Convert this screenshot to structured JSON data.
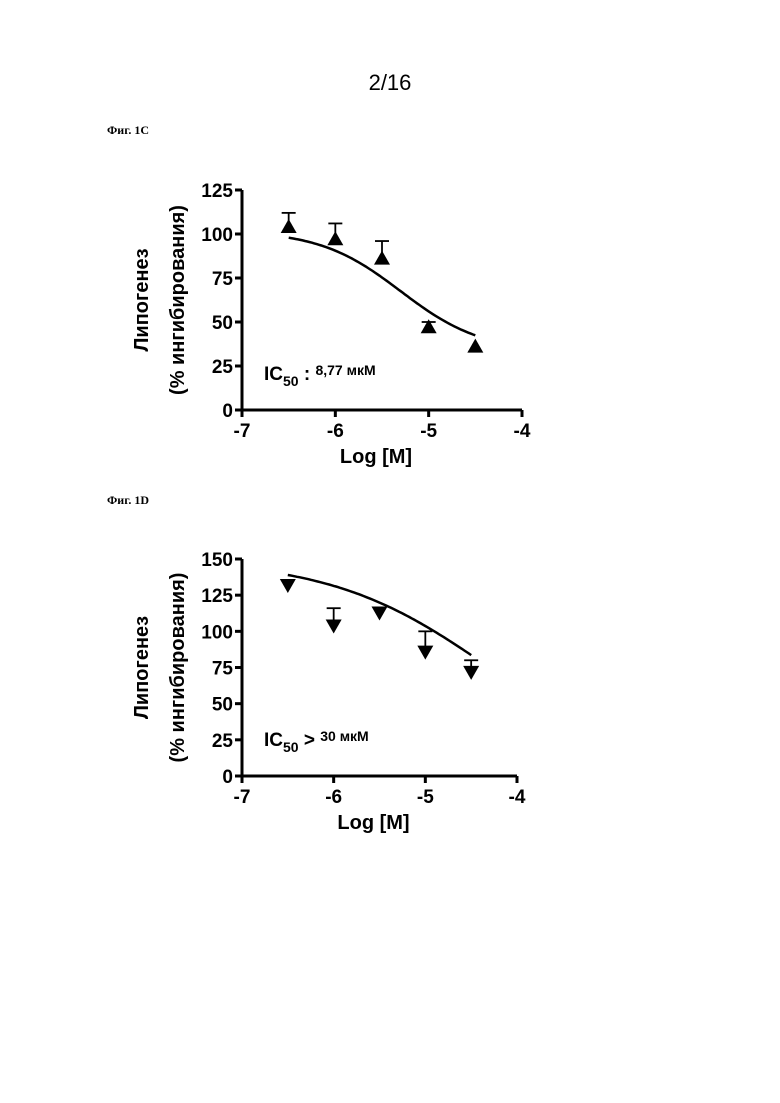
{
  "page": {
    "page_number": "2/16"
  },
  "figures": [
    {
      "label": "Фиг. 1C"
    },
    {
      "label": "Фиг. 1D"
    }
  ],
  "chart_data": [
    {
      "type": "scatter",
      "marker": "triangle-up",
      "title": "",
      "xlabel": "Log [M]",
      "ylabel_line1": "Липогенез",
      "ylabel_line2": "(% ингибирования)",
      "xlim": [
        -7,
        -4
      ],
      "ylim": [
        0,
        125
      ],
      "xticks": [
        -7,
        -6,
        -5,
        -4
      ],
      "xtick_labels": [
        "-7",
        "-6",
        "-5",
        "-4"
      ],
      "yticks": [
        0,
        25,
        50,
        75,
        100,
        125
      ],
      "ytick_labels": [
        "0",
        "25",
        "50",
        "75",
        "100",
        "125"
      ],
      "x": [
        -6.5,
        -6.0,
        -5.5,
        -5.0,
        -4.5
      ],
      "y": [
        104,
        97,
        86,
        47,
        36
      ],
      "error_upper": [
        8,
        9,
        10,
        3,
        0
      ],
      "fit": {
        "type": "sigmoid",
        "top": 102,
        "bottom": 33,
        "logIC50": -5.3,
        "hill": 1.0
      },
      "annotation": {
        "prefix": "IC",
        "subscript": "50",
        "operator": " :",
        "value": "8,77 мкМ"
      }
    },
    {
      "type": "scatter",
      "marker": "triangle-down",
      "title": "",
      "xlabel": "Log [M]",
      "ylabel_line1": "Липогенез",
      "ylabel_line2": "(% ингибирования)",
      "xlim": [
        -7,
        -4
      ],
      "ylim": [
        0,
        150
      ],
      "xticks": [
        -7,
        -6,
        -5,
        -4
      ],
      "xtick_labels": [
        "-7",
        "-6",
        "-5",
        "-4"
      ],
      "yticks": [
        0,
        25,
        50,
        75,
        100,
        125,
        150
      ],
      "ytick_labels": [
        "0",
        "25",
        "50",
        "75",
        "100",
        "125",
        "150"
      ],
      "x": [
        -6.5,
        -6.0,
        -5.5,
        -5.0,
        -4.5
      ],
      "y": [
        132,
        104,
        113,
        86,
        72
      ],
      "error_upper": [
        0,
        12,
        0,
        14,
        8
      ],
      "fit": {
        "type": "sigmoid",
        "top": 150,
        "bottom": 0,
        "logIC50": -4.3,
        "hill": 0.5
      },
      "annotation": {
        "prefix": "IC",
        "subscript": "50",
        "operator": " >",
        "value": "30 мкМ"
      }
    }
  ]
}
